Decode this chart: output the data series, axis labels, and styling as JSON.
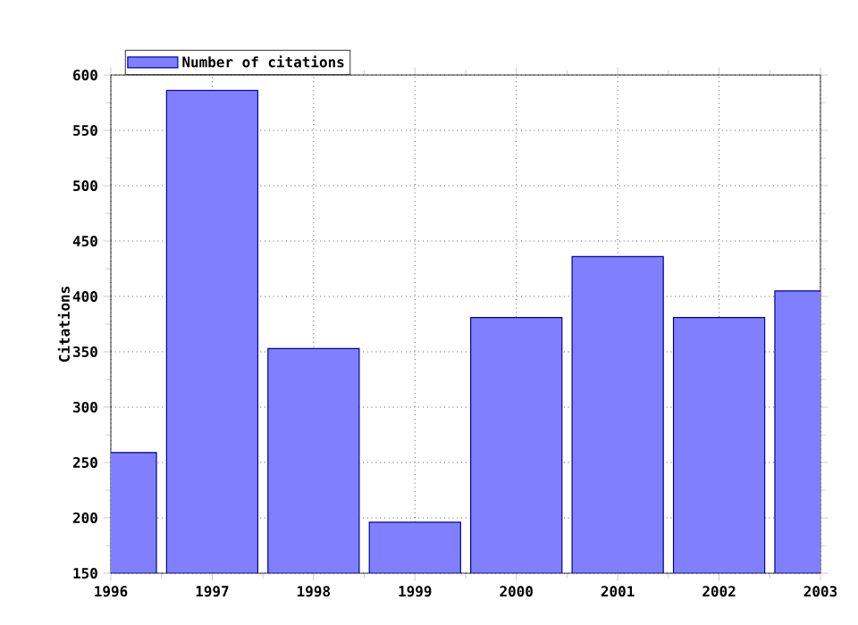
{
  "chart_data": {
    "type": "bar",
    "ylabel": "Citations",
    "x": [
      1996,
      1997,
      1998,
      1999,
      2000,
      2001,
      2002,
      2003
    ],
    "series": [
      {
        "name": "Number of citations",
        "color": "#8080ff",
        "values": [
          259,
          586,
          353,
          196,
          381,
          436,
          381,
          405
        ]
      }
    ],
    "xlim": [
      1996,
      2003
    ],
    "xticks": [
      1996,
      1997,
      1998,
      1999,
      2000,
      2001,
      2002,
      2003
    ],
    "ylim": [
      150,
      600
    ],
    "yticks": [
      150,
      200,
      250,
      300,
      350,
      400,
      450,
      500,
      550,
      600
    ],
    "grid": true,
    "legend": "top left"
  }
}
